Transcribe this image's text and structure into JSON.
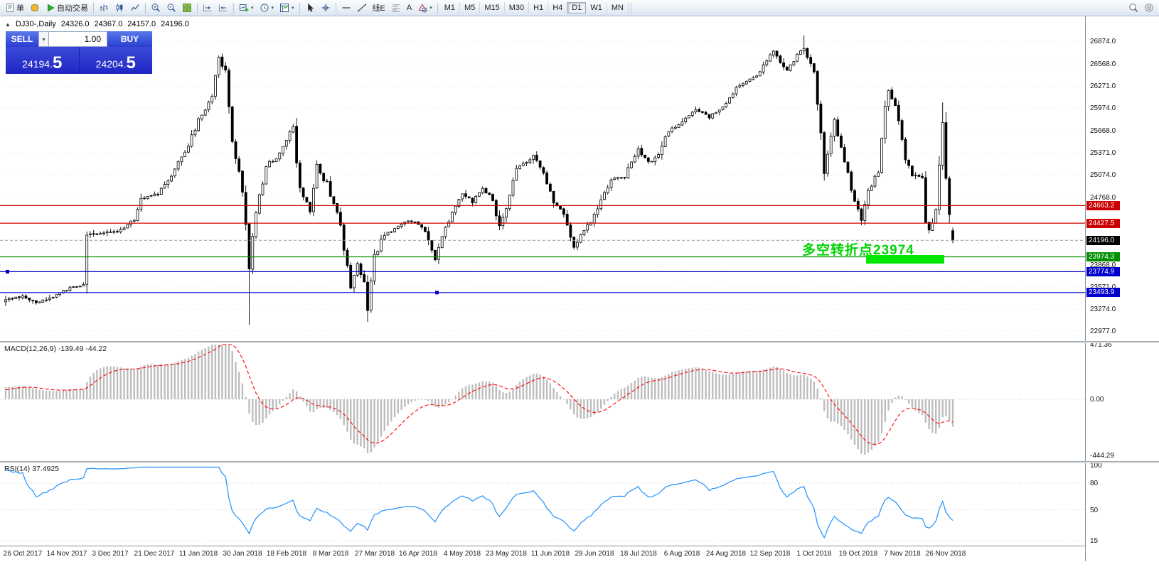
{
  "toolbar": {
    "groups": [
      {
        "items": [
          {
            "name": "new-order-button",
            "icon": "order-icon",
            "label": "单"
          },
          {
            "name": "deposit-button",
            "icon": "coins-icon"
          },
          {
            "name": "autotrade-button",
            "icon": "play-icon",
            "label": "自动交易"
          }
        ]
      },
      {
        "items": [
          {
            "name": "bar-chart-button",
            "icon": "bars-icon"
          },
          {
            "name": "candlestick-chart-button",
            "icon": "candles-icon"
          },
          {
            "name": "line-chart-button",
            "icon": "line-icon"
          }
        ]
      },
      {
        "items": [
          {
            "name": "zoom-in-button",
            "icon": "zoom-in-icon"
          },
          {
            "name": "zoom-out-button",
            "icon": "zoom-out-icon"
          },
          {
            "name": "tile-windows-button",
            "icon": "tile-icon"
          }
        ]
      },
      {
        "items": [
          {
            "name": "auto-scroll-button",
            "icon": "autoscroll-icon"
          },
          {
            "name": "chart-shift-button",
            "icon": "shift-icon"
          }
        ]
      },
      {
        "items": [
          {
            "name": "new-chart-button",
            "icon": "new-chart-icon",
            "dropdown": true
          },
          {
            "name": "periods-button",
            "icon": "clock-icon",
            "dropdown": true
          },
          {
            "name": "templates-button",
            "icon": "template-icon",
            "dropdown": true
          }
        ]
      },
      {
        "items": [
          {
            "name": "cursor-button",
            "icon": "cursor-icon"
          },
          {
            "name": "crosshair-button",
            "icon": "crosshair-icon"
          }
        ]
      },
      {
        "items": [
          {
            "name": "horizontal-line-button",
            "icon": "hline-icon"
          },
          {
            "name": "trendline-button",
            "icon": "trendline-icon"
          },
          {
            "name": "channel-button",
            "label": "线E"
          },
          {
            "name": "fibonacci-button",
            "icon": "fibo-icon"
          },
          {
            "name": "text-label-button",
            "label": "A"
          },
          {
            "name": "shapes-button",
            "icon": "shapes-icon",
            "dropdown": true
          }
        ]
      }
    ],
    "timeframes": [
      "M1",
      "M5",
      "M15",
      "M30",
      "H1",
      "H4",
      "D1",
      "W1",
      "MN"
    ],
    "active_timeframe": "D1",
    "right_items": [
      {
        "name": "search-button",
        "icon": "search-icon"
      },
      {
        "name": "quick-navigation-button",
        "icon": "target-icon"
      }
    ]
  },
  "chart": {
    "symbol_period": "DJ30-,Daily",
    "ohlc": {
      "open": "24326.0",
      "high": "24367.0",
      "low": "24157.0",
      "close": "24196.0"
    },
    "trade_widget": {
      "sell_label": "SELL",
      "buy_label": "BUY",
      "lot_value": "1.00",
      "sell_price_main": "24194.",
      "sell_price_pip": "5",
      "buy_price_main": "24204.",
      "buy_price_pip": "5"
    },
    "annotation": {
      "text": "多空转折点23974"
    },
    "price_axis_labels": [
      "26874.0",
      "26568.0",
      "26271.0",
      "25974.0",
      "25668.0",
      "25371.0",
      "25074.0",
      "24768.0",
      "23868.0",
      "23571.0",
      "23274.0",
      "22977.0"
    ],
    "levels": [
      {
        "price": 24663.2,
        "label": "24663.2",
        "color": "#cc0000"
      },
      {
        "price": 24427.5,
        "label": "24427.5",
        "color": "#cc0000"
      },
      {
        "price": 23974.3,
        "label": "23974.3",
        "color": "#009000"
      },
      {
        "price": 23774.9,
        "label": "23774.9",
        "color": "#0000cc"
      },
      {
        "price": 23493.9,
        "label": "23493.9",
        "color": "#0000cc"
      }
    ],
    "current_price": {
      "label": "24196.0",
      "value": 24196.0,
      "color": "#000000"
    }
  },
  "macd": {
    "label": "MACD(12,26,9) -139.49 -44.22",
    "axis_labels": [
      "471.36",
      "0.00",
      "-444.29"
    ],
    "axis_values": [
      471.36,
      0,
      -444.29
    ]
  },
  "rsi": {
    "label": "RSI(14) 37.4925",
    "axis_labels": [
      "100",
      "80",
      "50",
      "15"
    ],
    "axis_values": [
      100,
      80,
      50,
      15
    ],
    "levels": [
      80,
      50,
      15
    ]
  },
  "date_axis": [
    "26 Oct 2017",
    "14 Nov 2017",
    "3 Dec 2017",
    "21 Dec 2017",
    "11 Jan 2018",
    "30 Jan 2018",
    "18 Feb 2018",
    "8 Mar 2018",
    "27 Mar 2018",
    "16 Apr 2018",
    "4 May 2018",
    "23 May 2018",
    "11 Jun 2018",
    "29 Jun 2018",
    "18 Jul 2018",
    "6 Aug 2018",
    "24 Aug 2018",
    "12 Sep 2018",
    "1 Oct 2018",
    "19 Oct 2018",
    "7 Nov 2018",
    "26 Nov 2018"
  ],
  "colors": {
    "bull_candle": "#ffffff",
    "bear_candle": "#000000",
    "candle_border": "#000000",
    "grid": "#e4e4e4",
    "resistance": "#cc0000",
    "pivot": "#009000",
    "support": "#0000cc",
    "current_price_line": "#9a9a9a",
    "macd_histogram": "#bdbdbd",
    "macd_signal": "#ff0000",
    "rsi_line": "#1e90ff",
    "annotation_text": "#00d400",
    "annotation_bar": "#00e800",
    "widget_button": "#3c55dd",
    "widget_price_bg": "#2a2fd0"
  },
  "chart_data": {
    "type": "candlestick",
    "symbol": "DJ30-",
    "timeframe": "Daily",
    "visible_price_range": [
      22862,
      27208
    ],
    "candle_count": 281,
    "close_waypoints": [
      [
        0,
        23400
      ],
      [
        5,
        23440
      ],
      [
        9,
        23360
      ],
      [
        14,
        23430
      ],
      [
        19,
        23560
      ],
      [
        23,
        23580
      ],
      [
        24,
        24272
      ],
      [
        28,
        24290
      ],
      [
        34,
        24330
      ],
      [
        38,
        24505
      ],
      [
        40,
        24754
      ],
      [
        45,
        24824
      ],
      [
        49,
        25075
      ],
      [
        53,
        25385
      ],
      [
        57,
        25803
      ],
      [
        61,
        26150
      ],
      [
        63,
        26617
      ],
      [
        65,
        26440
      ],
      [
        67,
        25520
      ],
      [
        70,
        24893
      ],
      [
        72,
        23860
      ],
      [
        74,
        24600
      ],
      [
        77,
        25200
      ],
      [
        80,
        25310
      ],
      [
        85,
        25709
      ],
      [
        87,
        24875
      ],
      [
        90,
        24610
      ],
      [
        92,
        25178
      ],
      [
        95,
        24946
      ],
      [
        98,
        24610
      ],
      [
        100,
        24110
      ],
      [
        102,
        23533
      ],
      [
        104,
        23930
      ],
      [
        106,
        23644
      ],
      [
        107,
        23300
      ],
      [
        109,
        23979
      ],
      [
        112,
        24264
      ],
      [
        115,
        24360
      ],
      [
        118,
        24448
      ],
      [
        121,
        24463
      ],
      [
        124,
        24311
      ],
      [
        127,
        23924
      ],
      [
        129,
        24263
      ],
      [
        132,
        24543
      ],
      [
        135,
        24831
      ],
      [
        138,
        24715
      ],
      [
        141,
        24886
      ],
      [
        144,
        24754
      ],
      [
        146,
        24361
      ],
      [
        148,
        24635
      ],
      [
        151,
        25146
      ],
      [
        156,
        25322
      ],
      [
        159,
        25090
      ],
      [
        162,
        24700
      ],
      [
        165,
        24580
      ],
      [
        168,
        24117
      ],
      [
        170,
        24271
      ],
      [
        173,
        24456
      ],
      [
        179,
        25019
      ],
      [
        183,
        25058
      ],
      [
        187,
        25414
      ],
      [
        190,
        25241
      ],
      [
        193,
        25333
      ],
      [
        196,
        25669
      ],
      [
        200,
        25790
      ],
      [
        204,
        25964
      ],
      [
        208,
        25857
      ],
      [
        212,
        25995
      ],
      [
        216,
        26246
      ],
      [
        222,
        26405
      ],
      [
        227,
        26743
      ],
      [
        231,
        26458
      ],
      [
        236,
        26828
      ],
      [
        239,
        26430
      ],
      [
        241,
        25599
      ],
      [
        242,
        25052
      ],
      [
        245,
        25798
      ],
      [
        248,
        25250
      ],
      [
        251,
        24688
      ],
      [
        253,
        24443
      ],
      [
        255,
        24874
      ],
      [
        258,
        25115
      ],
      [
        260,
        26014
      ],
      [
        261,
        26191
      ],
      [
        263,
        25989
      ],
      [
        266,
        25286
      ],
      [
        268,
        25080
      ],
      [
        271,
        25017
      ],
      [
        272,
        24465
      ],
      [
        273,
        24286
      ],
      [
        275,
        24640
      ],
      [
        277,
        25826
      ],
      [
        278,
        25027
      ],
      [
        279,
        24527
      ],
      [
        280,
        24196
      ]
    ],
    "wick_overrides": {
      "63": {
        "high": 26684
      },
      "72": {
        "low": 23060
      },
      "107": {
        "low": 23100
      },
      "236": {
        "high": 26951
      },
      "277": {
        "high": 26050
      }
    },
    "last_candle": {
      "open": 24326.0,
      "high": 24367.0,
      "low": 24157.0,
      "close": 24196.0
    },
    "indicators": [
      {
        "name": "MACD",
        "params": [
          12,
          26,
          9
        ],
        "last_values": [
          -139.49,
          -44.22
        ],
        "panel_range": [
          -444.29,
          471.36
        ]
      },
      {
        "name": "RSI",
        "params": [
          14
        ],
        "last_value": 37.4925,
        "panel_levels": [
          80,
          50,
          15
        ]
      }
    ]
  }
}
